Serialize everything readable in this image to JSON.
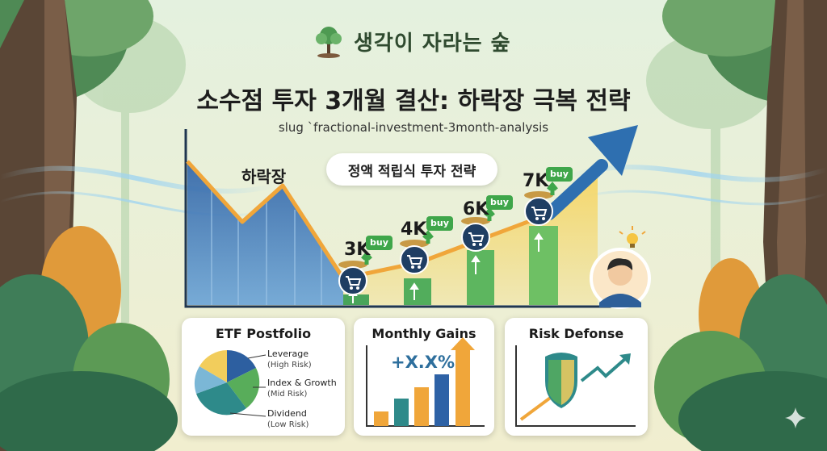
{
  "brand": {
    "name": "생각이 자라는 숲"
  },
  "header": {
    "title": "소수점 투자 3개월 결산: 하락장 극복 전략",
    "slug": "slug `fractional-investment-3month-analysis"
  },
  "hero": {
    "drop_label": "하락장",
    "strategy_label": "정액 적립식 투자 전략",
    "steps": [
      {
        "amount": "3K",
        "badge": "buy"
      },
      {
        "amount": "4K",
        "badge": "buy"
      },
      {
        "amount": "6K",
        "badge": "buy"
      },
      {
        "amount": "7K",
        "badge": "buy"
      }
    ]
  },
  "cards": {
    "portfolio": {
      "title": "ETF Postfolio",
      "legend": [
        {
          "name": "Leverage",
          "risk": "(High Risk)",
          "color": "#2d5fa0"
        },
        {
          "name": "Index & Growth",
          "risk": "(Mid Risk)",
          "color": "#58ad5a"
        },
        {
          "name": "Dividend",
          "risk": "(Low Risk)",
          "color": "#2e8a8a"
        }
      ]
    },
    "gains": {
      "title": "Monthly Gains",
      "value": "+X.X%"
    },
    "defense": {
      "title": "Risk Defonse"
    }
  },
  "colors": {
    "accent_green": "#3fa64a",
    "accent_blue": "#2d5fa0",
    "accent_orange": "#f0a63a"
  }
}
